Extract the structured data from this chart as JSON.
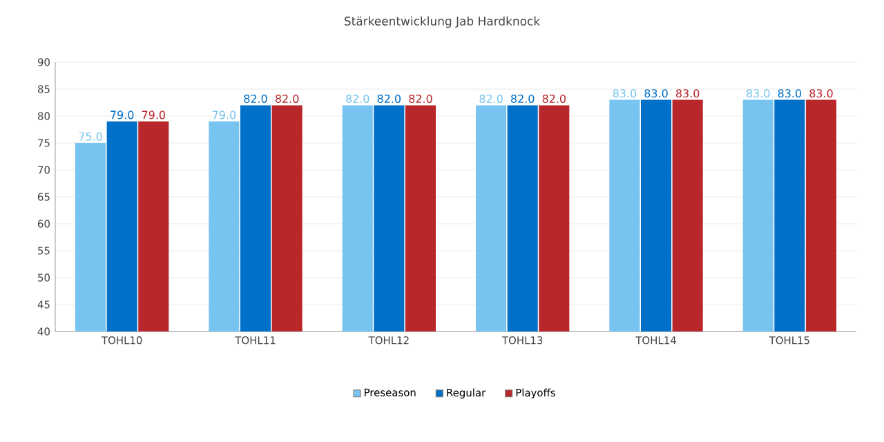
{
  "chart_data": {
    "type": "bar",
    "title": "Stärkeentwicklung Jab Hardknock",
    "categories": [
      "TOHL10",
      "TOHL11",
      "TOHL12",
      "TOHL13",
      "TOHL14",
      "TOHL15"
    ],
    "series": [
      {
        "name": "Preseason",
        "color": "#76c4ef",
        "values": [
          75,
          79,
          82,
          82,
          83,
          83
        ],
        "value_labels": [
          "75.0",
          "79.0",
          "82.0",
          "82.0",
          "83.0",
          "83.0"
        ]
      },
      {
        "name": "Regular",
        "color": "#0070c8",
        "values": [
          79,
          82,
          82,
          82,
          83,
          83
        ],
        "value_labels": [
          "79.0",
          "82.0",
          "82.0",
          "82.0",
          "83.0",
          "83.0"
        ]
      },
      {
        "name": "Playoffs",
        "color": "#b8272a",
        "values": [
          79,
          82,
          82,
          82,
          83,
          83
        ],
        "value_labels": [
          "79.0",
          "82.0",
          "82.0",
          "82.0",
          "83.0",
          "83.0"
        ]
      }
    ],
    "ylim": [
      40,
      90
    ],
    "yticks": [
      40,
      45,
      50,
      55,
      60,
      65,
      70,
      75,
      80,
      85,
      90
    ],
    "grid": "y",
    "legend": "bottom"
  }
}
